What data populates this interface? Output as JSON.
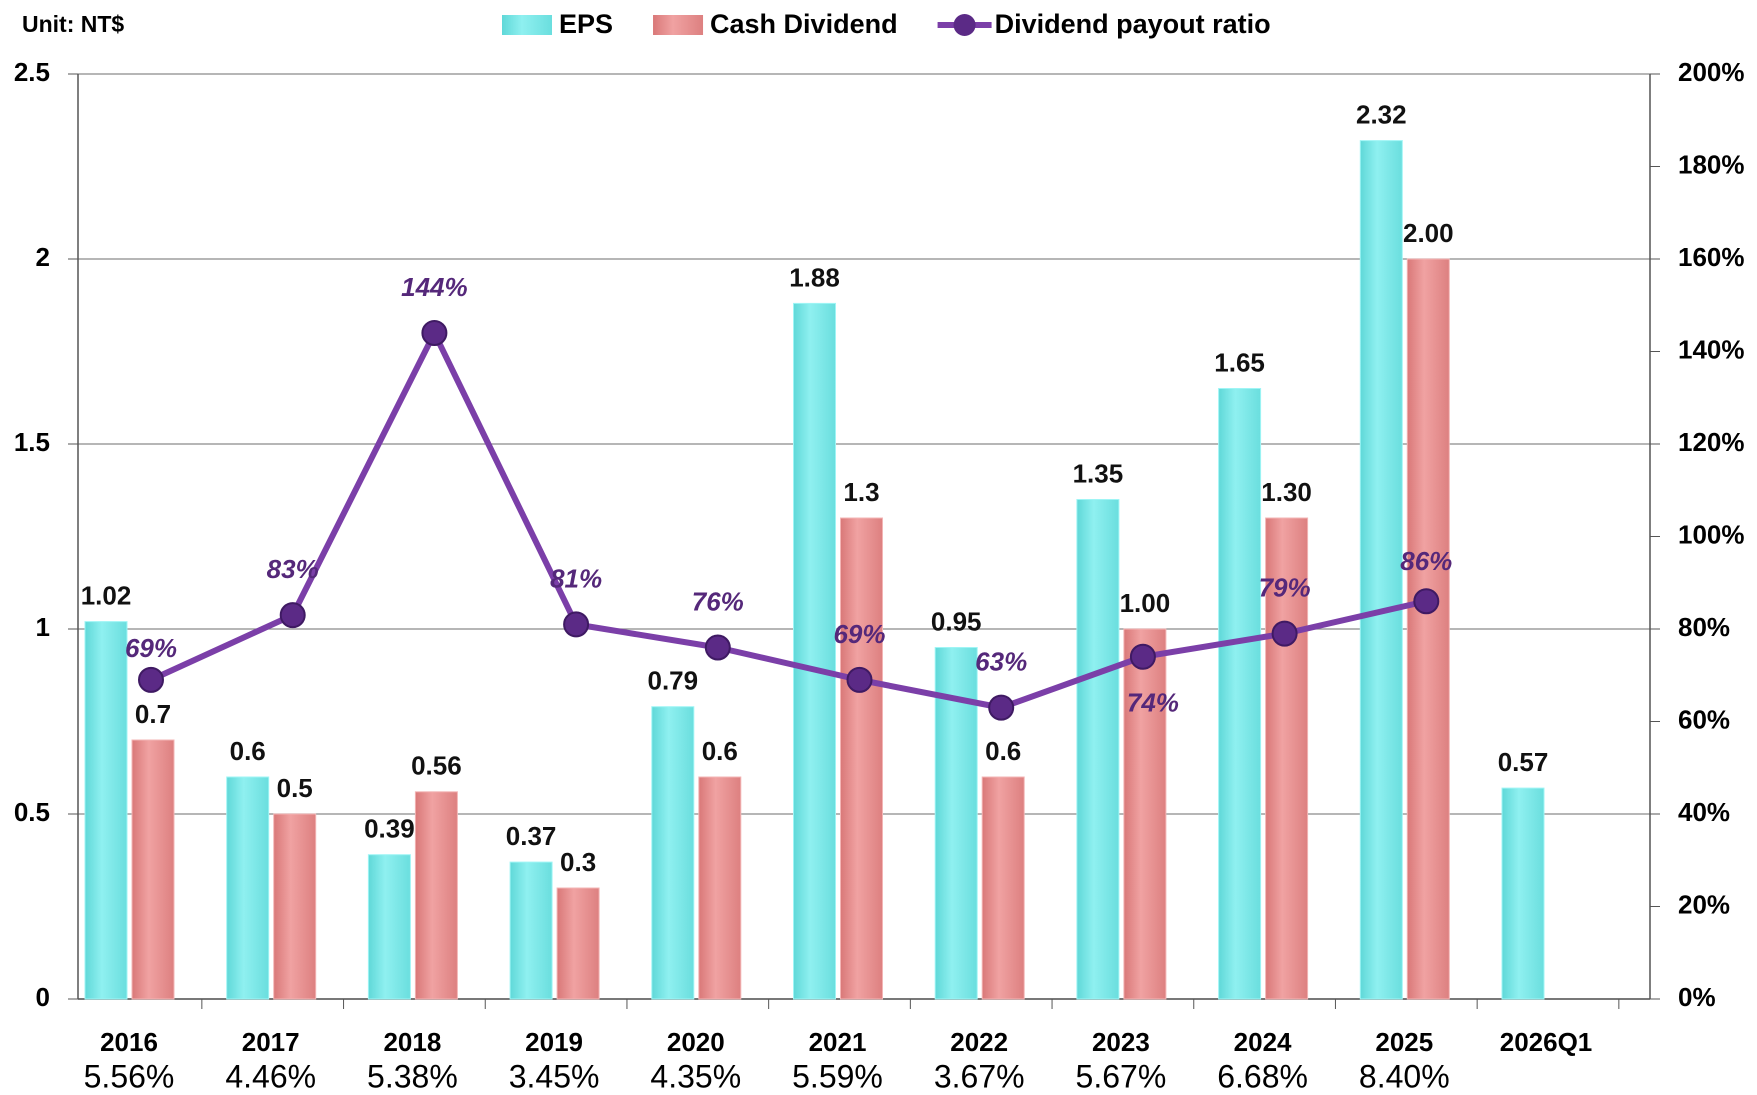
{
  "chart_data": {
    "type": "bar",
    "unit_label": "Unit: NT$",
    "categories": [
      "2016",
      "2017",
      "2018",
      "2019",
      "2020",
      "2021",
      "2022",
      "2023",
      "2024",
      "2025",
      "2026Q1"
    ],
    "category_sublabels": [
      "5.56%",
      "4.46%",
      "5.38%",
      "3.45%",
      "4.35%",
      "5.59%",
      "3.67%",
      "5.67%",
      "6.68%",
      "8.40%",
      null
    ],
    "series": [
      {
        "name": "EPS",
        "color": "#7fe9e9",
        "values": [
          1.02,
          0.6,
          0.39,
          0.37,
          0.79,
          1.88,
          0.95,
          1.35,
          1.65,
          2.32,
          0.57
        ]
      },
      {
        "name": "Cash Dividend",
        "color": "#e89292",
        "values": [
          0.7,
          0.5,
          0.56,
          0.3,
          0.6,
          1.3,
          0.6,
          1.0,
          1.3,
          2.0,
          null
        ],
        "value_labels": [
          "0.7",
          "0.5",
          "0.56",
          "0.3",
          "0.6",
          "1.3",
          "0.6",
          "1.00",
          "1.30",
          "2.00",
          null
        ]
      },
      {
        "name": "Dividend payout ratio",
        "color": "#7b3fa8",
        "type": "line",
        "axis": "y2",
        "values": [
          69,
          83,
          144,
          81,
          76,
          69,
          63,
          74,
          79,
          86,
          null
        ],
        "value_labels": [
          "69%",
          "83%",
          "144%",
          "81%",
          "76%",
          "69%",
          "63%",
          "74%",
          "79%",
          "86%",
          null
        ]
      }
    ],
    "ylim": [
      0,
      2.5
    ],
    "yticks": [
      0,
      0.5,
      1,
      1.5,
      2,
      2.5
    ],
    "y2lim": [
      0,
      200
    ],
    "y2ticks": [
      {
        "value": 0,
        "label": "0%"
      },
      {
        "value": 20,
        "label": "20%"
      },
      {
        "value": 40,
        "label": "40%"
      },
      {
        "value": 60,
        "label": "60%"
      },
      {
        "value": 80,
        "label": "80%"
      },
      {
        "value": 100,
        "label": "100%"
      },
      {
        "value": 120,
        "label": "120%"
      },
      {
        "value": 140,
        "label": "140%"
      },
      {
        "value": 160,
        "label": "160%"
      },
      {
        "value": 180,
        "label": "180%"
      },
      {
        "value": 200,
        "label": "200%"
      }
    ],
    "grid": true
  }
}
